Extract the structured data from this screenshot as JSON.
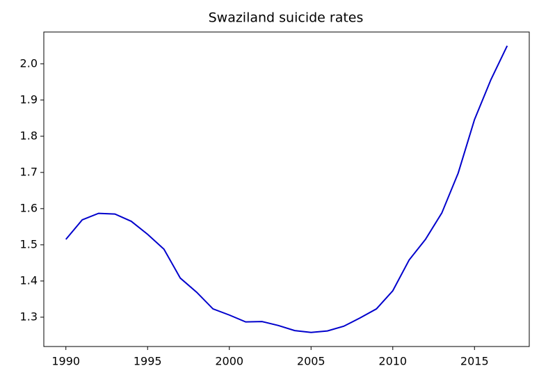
{
  "chart_data": {
    "type": "line",
    "title": "Swaziland suicide rates",
    "x": [
      1990,
      1991,
      1992,
      1993,
      1994,
      1995,
      1996,
      1997,
      1998,
      1999,
      2000,
      2001,
      2002,
      2003,
      2004,
      2005,
      2006,
      2007,
      2008,
      2009,
      2010,
      2011,
      2012,
      2013,
      2014,
      2015,
      2016,
      2017
    ],
    "series": [
      {
        "name": "Swaziland",
        "color": "#0000cc",
        "values": [
          1.515,
          1.569,
          1.587,
          1.585,
          1.565,
          1.529,
          1.488,
          1.408,
          1.369,
          1.323,
          1.306,
          1.287,
          1.288,
          1.277,
          1.263,
          1.258,
          1.262,
          1.275,
          1.298,
          1.323,
          1.373,
          1.458,
          1.515,
          1.588,
          1.698,
          1.846,
          1.956,
          2.05
        ]
      }
    ],
    "xlim": [
      1988.65,
      2018.35
    ],
    "xticks": [
      1990,
      1995,
      2000,
      2005,
      2010,
      2015
    ],
    "ylim": [
      1.219,
      2.088
    ],
    "yticks": [
      1.3,
      1.4,
      1.5,
      1.6,
      1.7,
      1.8,
      1.9,
      {
        "value": 2,
        "label": "2.0"
      }
    ]
  }
}
